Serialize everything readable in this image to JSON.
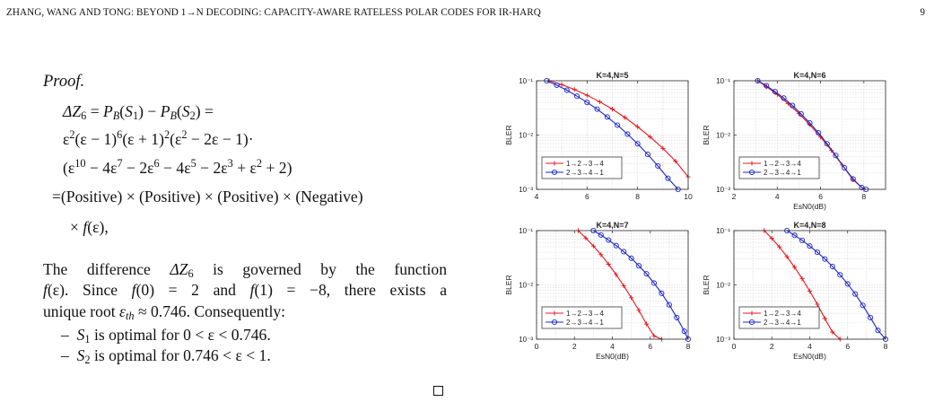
{
  "header": {
    "title": "ZHANG, WANG AND TONG: BEYOND 1→N DECODING: CAPACITY-AWARE RATELESS POLAR CODES FOR IR-HARQ",
    "page_number": "9"
  },
  "proof": {
    "label": "Proof.",
    "eq1": {
      "lhs": "ΔZ",
      "lhs_sub": "6",
      "p1": "P",
      "p1_sub": "B",
      "s1": "S",
      "s1_sub": "1",
      "p2": "P",
      "p2_sub": "B",
      "s2": "S",
      "s2_sub": "2"
    },
    "eq2": {
      "t1": "ε",
      "t1_sup": "2",
      "t2": "(ε − 1)",
      "t2_sup": "6",
      "t3": "(ε + 1)",
      "t3_sup": "2",
      "t4": "(ε",
      "t4_sup": "2",
      "t4_rest": " − 2ε − 1)·"
    },
    "eq3": {
      "a": "(ε",
      "a_sup": "10",
      "b": " − 4ε",
      "b_sup": "7",
      "c": " − 2ε",
      "c_sup": "6",
      "d": " − 4ε",
      "d_sup": "5",
      "e": " − 2ε",
      "e_sup": "3",
      "f": " + ε",
      "f_sup": "2",
      "g": " + 2)"
    },
    "eq4": "=(Positive) × (Positive) × (Positive) × (Negative)",
    "eq5": {
      "pre": "× ",
      "fn": "f",
      "arg": "(ε),",
      "post": ""
    },
    "para": {
      "l1_a": "The difference ",
      "l1_sym": "ΔZ",
      "l1_sub": "6",
      "l1_b": " is governed by the function",
      "l2_fn": "f",
      "l2_a": "(ε). Since ",
      "l2_f0": "f",
      "l2_b": "(0) = 2 and ",
      "l2_f1": "f",
      "l2_c": "(1) = −8, there exists a",
      "l3_a": "unique root ",
      "l3_eps": "ε",
      "l3_sub": "th",
      "l3_b": " ≈ 0.746. Consequently:"
    },
    "bullets": [
      {
        "dash": "–",
        "s": "S",
        "sub": "1",
        "text": " is optimal for 0 < ε < 0.746."
      },
      {
        "dash": "–",
        "s": "S",
        "sub": "2",
        "text": " is optimal for 0.746 < ε < 1."
      }
    ]
  },
  "chart_data": [
    {
      "type": "line",
      "title": "K=4,N=5",
      "xlabel": "",
      "ylabel": "BLER",
      "xlim": [
        4,
        10
      ],
      "xticks": [
        4,
        6,
        8,
        10
      ],
      "ylim": [
        0.001,
        0.1
      ],
      "yscale": "log",
      "yticks": [
        "10⁻¹",
        "10⁻²",
        "10⁻³"
      ],
      "grid": true,
      "legend": "bottom-left",
      "series": [
        {
          "name": "1→2→3→4",
          "color": "#e8141c",
          "marker": "plus",
          "x": [
            4.5,
            5.0,
            5.5,
            6.0,
            6.5,
            7.0,
            7.5,
            8.0,
            8.5,
            9.0,
            9.5,
            10.0
          ],
          "y": [
            0.1,
            0.085,
            0.069,
            0.054,
            0.041,
            0.03,
            0.021,
            0.0142,
            0.0092,
            0.0057,
            0.0033,
            0.0017
          ]
        },
        {
          "name": "2→3→4→1",
          "color": "#1a24c8",
          "marker": "circle",
          "x": [
            4.4,
            4.8,
            5.2,
            5.6,
            6.0,
            6.4,
            6.8,
            7.2,
            7.6,
            8.0,
            8.4,
            8.8,
            9.2,
            9.6
          ],
          "y": [
            0.1,
            0.083,
            0.067,
            0.052,
            0.04,
            0.03,
            0.0215,
            0.0152,
            0.0104,
            0.0069,
            0.0044,
            0.0027,
            0.0016,
            0.001
          ]
        }
      ]
    },
    {
      "type": "line",
      "title": "K=4,N=6",
      "xlabel": "EsN0(dB)",
      "ylabel": "BLER",
      "xlim": [
        2,
        9
      ],
      "xticks": [
        2,
        4,
        6,
        8
      ],
      "ylim": [
        0.001,
        0.1
      ],
      "yscale": "log",
      "yticks": [
        "10⁻¹",
        "10⁻²",
        "10⁻³"
      ],
      "grid": true,
      "legend": "bottom-left",
      "series": [
        {
          "name": "1→2→3→4",
          "color": "#e8141c",
          "marker": "plus",
          "x": [
            3.1,
            3.5,
            4.0,
            4.5,
            5.0,
            5.5,
            6.0,
            6.5,
            7.0,
            7.5,
            8.0
          ],
          "y": [
            0.1,
            0.078,
            0.056,
            0.038,
            0.025,
            0.0155,
            0.0092,
            0.0052,
            0.0028,
            0.0015,
            0.001
          ]
        },
        {
          "name": "2→3→4→1",
          "color": "#1a24c8",
          "marker": "circle",
          "x": [
            3.1,
            3.5,
            3.9,
            4.3,
            4.7,
            5.1,
            5.5,
            5.9,
            6.3,
            6.7,
            7.1,
            7.5,
            7.9,
            8.1
          ],
          "y": [
            0.1,
            0.081,
            0.063,
            0.048,
            0.035,
            0.0245,
            0.0167,
            0.011,
            0.0069,
            0.0042,
            0.0025,
            0.00155,
            0.00108,
            0.001
          ]
        }
      ]
    },
    {
      "type": "line",
      "title": "K=4,N=7",
      "xlabel": "EsN0(dB)",
      "ylabel": "BLER",
      "xlim": [
        0,
        8
      ],
      "xticks": [
        0,
        2,
        4,
        6,
        8
      ],
      "ylim": [
        0.001,
        0.1
      ],
      "yscale": "log",
      "yticks": [
        "10⁻¹",
        "10⁻²",
        "10⁻³"
      ],
      "grid": true,
      "legend": "bottom-left",
      "series": [
        {
          "name": "1→2→3→4",
          "color": "#e8141c",
          "marker": "plus",
          "x": [
            2.2,
            2.6,
            3.0,
            3.4,
            3.8,
            4.2,
            4.6,
            5.0,
            5.4,
            5.8,
            6.2,
            6.6
          ],
          "y": [
            0.1,
            0.073,
            0.052,
            0.036,
            0.024,
            0.0155,
            0.0096,
            0.0058,
            0.0034,
            0.0019,
            0.00115,
            0.001
          ]
        },
        {
          "name": "2→3→4→1",
          "color": "#1a24c8",
          "marker": "circle",
          "x": [
            3.0,
            3.4,
            3.8,
            4.2,
            4.6,
            5.0,
            5.4,
            5.8,
            6.2,
            6.6,
            7.0,
            7.4,
            7.8,
            8.0
          ],
          "y": [
            0.1,
            0.083,
            0.067,
            0.053,
            0.041,
            0.031,
            0.0225,
            0.016,
            0.0108,
            0.007,
            0.0043,
            0.0025,
            0.0014,
            0.001
          ]
        }
      ]
    },
    {
      "type": "line",
      "title": "K=4,N=8",
      "xlabel": "EsN0(dB)",
      "ylabel": "BLER",
      "xlim": [
        0,
        8
      ],
      "xticks": [
        0,
        2,
        4,
        6,
        8
      ],
      "ylim": [
        0.001,
        0.1
      ],
      "yscale": "log",
      "yticks": [
        "10⁻¹",
        "10⁻²",
        "10⁻³"
      ],
      "grid": true,
      "legend": "bottom-left",
      "series": [
        {
          "name": "1→2→3→4",
          "color": "#e8141c",
          "marker": "plus",
          "x": [
            1.6,
            2.0,
            2.4,
            2.8,
            3.2,
            3.6,
            4.0,
            4.4,
            4.8,
            5.2,
            5.6
          ],
          "y": [
            0.1,
            0.072,
            0.05,
            0.033,
            0.0212,
            0.013,
            0.0077,
            0.0044,
            0.0024,
            0.00135,
            0.001
          ]
        },
        {
          "name": "2→3→4→1",
          "color": "#1a24c8",
          "marker": "circle",
          "x": [
            2.8,
            3.2,
            3.6,
            4.0,
            4.4,
            4.8,
            5.2,
            5.6,
            6.0,
            6.4,
            6.8,
            7.2,
            7.6,
            8.0
          ],
          "y": [
            0.1,
            0.082,
            0.066,
            0.052,
            0.04,
            0.03,
            0.0218,
            0.0153,
            0.0104,
            0.0068,
            0.0042,
            0.0025,
            0.00145,
            0.001
          ]
        }
      ]
    }
  ]
}
